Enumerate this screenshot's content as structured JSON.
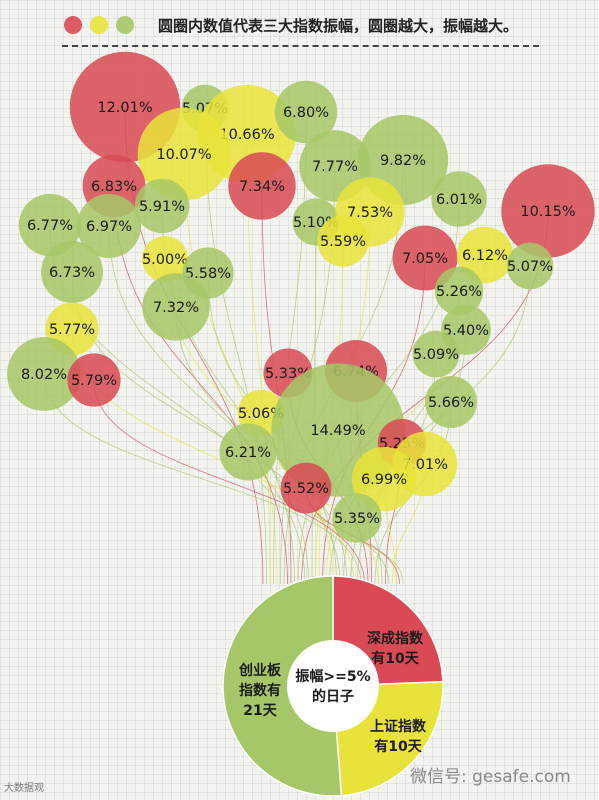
{
  "legend": {
    "text": "圆圈内数值代表三大指数振幅，圆圈越大，振幅越大。",
    "colors": [
      "#d94a55",
      "#e8e33a",
      "#a6c768"
    ]
  },
  "colors": {
    "red": "#d94a55",
    "yellow": "#e8e33a",
    "green": "#a6c768"
  },
  "chart_data": {
    "type": "pie",
    "center_label": [
      "振幅>=5%",
      "的日子"
    ],
    "slices": [
      {
        "name": "深成指数有10天",
        "lines": [
          "深成指数",
          "有10天"
        ],
        "value": 10,
        "color": "red"
      },
      {
        "name": "上证指数有10天",
        "lines": [
          "上证指数",
          "有10天"
        ],
        "value": 10,
        "color": "yellow"
      },
      {
        "name": "创业板指数有21天",
        "lines": [
          "创业板",
          "指数有",
          "21天"
        ],
        "value": 21,
        "color": "green"
      }
    ],
    "bubbles": [
      {
        "label": "12.01%",
        "value": 12.01,
        "color": "red"
      },
      {
        "label": "5.07%",
        "value": 5.07,
        "color": "green"
      },
      {
        "label": "10.66%",
        "value": 10.66,
        "color": "yellow"
      },
      {
        "label": "6.80%",
        "value": 6.8,
        "color": "green"
      },
      {
        "label": "10.07%",
        "value": 10.07,
        "color": "yellow"
      },
      {
        "label": "7.77%",
        "value": 7.77,
        "color": "green"
      },
      {
        "label": "9.82%",
        "value": 9.82,
        "color": "green"
      },
      {
        "label": "6.83%",
        "value": 6.83,
        "color": "red"
      },
      {
        "label": "7.34%",
        "value": 7.34,
        "color": "red"
      },
      {
        "label": "5.91%",
        "value": 5.91,
        "color": "green"
      },
      {
        "label": "6.01%",
        "value": 6.01,
        "color": "green"
      },
      {
        "label": "10.15%",
        "value": 10.15,
        "color": "red"
      },
      {
        "label": "6.77%",
        "value": 6.77,
        "color": "green"
      },
      {
        "label": "6.97%",
        "value": 6.97,
        "color": "green"
      },
      {
        "label": "5.10%",
        "value": 5.1,
        "color": "green"
      },
      {
        "label": "7.53%",
        "value": 7.53,
        "color": "yellow"
      },
      {
        "label": "5.59%",
        "value": 5.59,
        "color": "yellow"
      },
      {
        "label": "7.05%",
        "value": 7.05,
        "color": "red"
      },
      {
        "label": "6.12%",
        "value": 6.12,
        "color": "yellow"
      },
      {
        "label": "5.07%",
        "value": 5.07,
        "color": "green"
      },
      {
        "label": "5.00%",
        "value": 5.0,
        "color": "yellow"
      },
      {
        "label": "5.58%",
        "value": 5.58,
        "color": "green"
      },
      {
        "label": "6.73%",
        "value": 6.73,
        "color": "green"
      },
      {
        "label": "5.26%",
        "value": 5.26,
        "color": "green"
      },
      {
        "label": "7.32%",
        "value": 7.32,
        "color": "green"
      },
      {
        "label": "5.40%",
        "value": 5.4,
        "color": "green"
      },
      {
        "label": "5.77%",
        "value": 5.77,
        "color": "yellow"
      },
      {
        "label": "5.09%",
        "value": 5.09,
        "color": "green"
      },
      {
        "label": "8.02%",
        "value": 8.02,
        "color": "green"
      },
      {
        "label": "5.79%",
        "value": 5.79,
        "color": "red"
      },
      {
        "label": "5.33%",
        "value": 5.33,
        "color": "red"
      },
      {
        "label": "6.74%",
        "value": 6.74,
        "color": "red"
      },
      {
        "label": "5.66%",
        "value": 5.66,
        "color": "green"
      },
      {
        "label": "5.06%",
        "value": 5.06,
        "color": "yellow"
      },
      {
        "label": "14.49%",
        "value": 14.49,
        "color": "green"
      },
      {
        "label": "5.25%",
        "value": 5.25,
        "color": "red"
      },
      {
        "label": "6.21%",
        "value": 6.21,
        "color": "green"
      },
      {
        "label": "7.01%",
        "value": 7.01,
        "color": "yellow"
      },
      {
        "label": "6.99%",
        "value": 6.99,
        "color": "yellow"
      },
      {
        "label": "5.52%",
        "value": 5.52,
        "color": "red"
      },
      {
        "label": "5.35%",
        "value": 5.35,
        "color": "green"
      }
    ]
  },
  "watermark": {
    "left": "大数据观",
    "right": "微信号: gesafe.com"
  }
}
